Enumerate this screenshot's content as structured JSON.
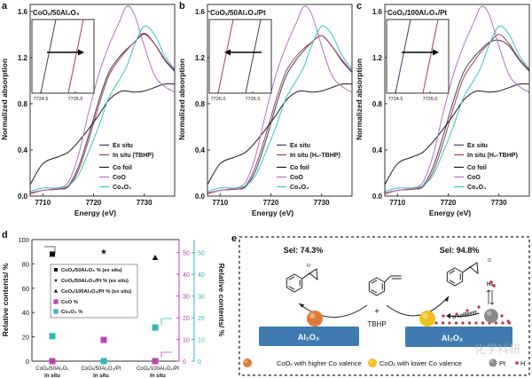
{
  "figure": {
    "panel_labels": [
      "a",
      "b",
      "c",
      "d",
      "e"
    ]
  },
  "chart_data": [
    {
      "panel": "a",
      "type": "line",
      "inset_title": "CoOₓ/50Al₂O₃",
      "xlabel": "Energy (eV)",
      "ylabel": "Normalized absorption",
      "xlim": [
        7707.5,
        7736
      ],
      "ylim": [
        0,
        1.66
      ],
      "xticks": [
        7710,
        7720,
        7730
      ],
      "yticks": [
        0,
        0.4,
        0.8,
        1.2,
        1.6
      ],
      "legend_position": "bottom-right",
      "x": [
        7707.5,
        7710,
        7713,
        7715,
        7717,
        7719,
        7721,
        7723,
        7725,
        7726.5,
        7728,
        7730,
        7732,
        7734,
        7736
      ],
      "series": [
        {
          "name": "Ex situ",
          "color": "#3b4060",
          "values": [
            0.02,
            0.05,
            0.06,
            0.09,
            0.25,
            0.52,
            0.82,
            1.07,
            1.2,
            1.27,
            1.33,
            1.41,
            1.32,
            1.18,
            1.08
          ]
        },
        {
          "name": "In situ (TBHP)",
          "color": "#a8404c",
          "values": [
            0.02,
            0.05,
            0.06,
            0.08,
            0.22,
            0.48,
            0.78,
            1.04,
            1.18,
            1.26,
            1.33,
            1.4,
            1.32,
            1.19,
            1.09
          ]
        },
        {
          "name": "Co foil",
          "color": "#1a1a1a",
          "values": [
            0.1,
            0.28,
            0.34,
            0.38,
            0.47,
            0.58,
            0.7,
            0.83,
            0.9,
            0.91,
            0.9,
            0.91,
            0.94,
            0.97,
            0.97
          ]
        },
        {
          "name": "CoO",
          "color": "#b070c4",
          "values": [
            0.03,
            0.05,
            0.07,
            0.12,
            0.35,
            0.72,
            1.05,
            1.3,
            1.5,
            1.64,
            1.58,
            1.3,
            1.05,
            0.95,
            0.9
          ]
        },
        {
          "name": "Co₃O₄",
          "color": "#3cc4c4",
          "values": [
            0.04,
            0.07,
            0.07,
            0.09,
            0.18,
            0.38,
            0.6,
            0.85,
            1.0,
            1.12,
            1.3,
            1.47,
            1.4,
            1.22,
            1.1
          ]
        }
      ],
      "inset": {
        "xticks": [
          "7724.5",
          "7725.0"
        ],
        "shift": "right",
        "left_line": "Ex situ",
        "right_line": "In situ (TBHP)"
      }
    },
    {
      "panel": "b",
      "type": "line",
      "inset_title": "CoOₓ/50Al₂O₃/Pt",
      "xlabel": "Energy (eV)",
      "ylabel": "Normalized absorption",
      "xlim": [
        7707.5,
        7736
      ],
      "ylim": [
        0,
        1.66
      ],
      "xticks": [
        7710,
        7720,
        7730
      ],
      "yticks": [
        0,
        0.4,
        0.8,
        1.2,
        1.6
      ],
      "legend_position": "bottom-right",
      "x": [
        7707.5,
        7710,
        7713,
        7715,
        7717,
        7719,
        7721,
        7723,
        7725,
        7726.5,
        7728,
        7730,
        7732,
        7734,
        7736
      ],
      "series": [
        {
          "name": "Ex situ",
          "color": "#3b4060",
          "values": [
            0.02,
            0.05,
            0.06,
            0.08,
            0.22,
            0.48,
            0.78,
            1.04,
            1.18,
            1.26,
            1.33,
            1.39,
            1.3,
            1.18,
            1.08
          ]
        },
        {
          "name": "In situ (H₂-TBHP)",
          "color": "#a8404c",
          "values": [
            0.02,
            0.05,
            0.06,
            0.09,
            0.26,
            0.53,
            0.83,
            1.08,
            1.21,
            1.28,
            1.33,
            1.39,
            1.3,
            1.17,
            1.07
          ]
        },
        {
          "name": "Co foil",
          "color": "#1a1a1a",
          "values": [
            0.1,
            0.28,
            0.34,
            0.38,
            0.47,
            0.58,
            0.7,
            0.83,
            0.9,
            0.91,
            0.9,
            0.91,
            0.94,
            0.97,
            0.97
          ]
        },
        {
          "name": "CoO",
          "color": "#b070c4",
          "values": [
            0.03,
            0.05,
            0.07,
            0.12,
            0.35,
            0.72,
            1.05,
            1.3,
            1.5,
            1.64,
            1.58,
            1.3,
            1.05,
            0.95,
            0.9
          ]
        },
        {
          "name": "Co₃O₄",
          "color": "#3cc4c4",
          "values": [
            0.04,
            0.07,
            0.07,
            0.09,
            0.18,
            0.38,
            0.6,
            0.85,
            1.0,
            1.12,
            1.3,
            1.47,
            1.4,
            1.22,
            1.1
          ]
        }
      ],
      "inset": {
        "xticks": [
          "7726.0",
          "7726.5"
        ],
        "shift": "left",
        "left_line": "In situ (H₂-TBHP)",
        "right_line": "Ex situ"
      }
    },
    {
      "panel": "c",
      "type": "line",
      "inset_title": "CoOₓ/100Al₂O₃/Pt",
      "xlabel": "Energy (eV)",
      "ylabel": "Normalized absorption",
      "xlim": [
        7707.5,
        7736
      ],
      "ylim": [
        0,
        1.66
      ],
      "xticks": [
        7710,
        7720,
        7730
      ],
      "yticks": [
        0,
        0.4,
        0.8,
        1.2,
        1.6
      ],
      "legend_position": "bottom-right",
      "x": [
        7707.5,
        7710,
        7713,
        7715,
        7717,
        7719,
        7721,
        7723,
        7725,
        7726.5,
        7728,
        7730,
        7732,
        7734,
        7736
      ],
      "series": [
        {
          "name": "Ex situ",
          "color": "#3b4060",
          "values": [
            0.02,
            0.05,
            0.06,
            0.09,
            0.25,
            0.52,
            0.82,
            1.07,
            1.2,
            1.27,
            1.33,
            1.35,
            1.3,
            1.18,
            1.08
          ]
        },
        {
          "name": "In situ (H₂-TBHP)",
          "color": "#a8404c",
          "values": [
            0.02,
            0.05,
            0.06,
            0.08,
            0.21,
            0.46,
            0.76,
            1.02,
            1.16,
            1.25,
            1.32,
            1.4,
            1.32,
            1.19,
            1.09
          ]
        },
        {
          "name": "Co foil",
          "color": "#1a1a1a",
          "values": [
            0.1,
            0.28,
            0.34,
            0.38,
            0.47,
            0.58,
            0.7,
            0.83,
            0.9,
            0.91,
            0.9,
            0.91,
            0.94,
            0.97,
            0.97
          ]
        },
        {
          "name": "CoO",
          "color": "#b070c4",
          "values": [
            0.03,
            0.05,
            0.07,
            0.12,
            0.35,
            0.72,
            1.05,
            1.3,
            1.5,
            1.64,
            1.58,
            1.3,
            1.05,
            0.95,
            0.9
          ]
        },
        {
          "name": "Co₃O₄",
          "color": "#3cc4c4",
          "values": [
            0.04,
            0.07,
            0.07,
            0.09,
            0.18,
            0.38,
            0.6,
            0.85,
            1.0,
            1.12,
            1.3,
            1.47,
            1.4,
            1.22,
            1.1
          ]
        }
      ],
      "inset": {
        "xticks": [
          "7724.5",
          "7725.0"
        ],
        "shift": "right",
        "left_line": "Ex situ",
        "right_line": "In situ (H₂-TBHP)"
      }
    },
    {
      "panel": "d",
      "type": "scatter",
      "ylabel_left": "Relative contents/ %",
      "ylabel_right": "Relative contents/ %",
      "ylim_left": [
        0,
        100
      ],
      "yticks_left": [
        0,
        20,
        40,
        60,
        80,
        100
      ],
      "ylim_right": [
        0,
        56
      ],
      "yticks_right": [
        0,
        10,
        20,
        30,
        40,
        50
      ],
      "right_axis_colors": {
        "coo": "#c040b0",
        "co3o4": "#30b8b8"
      },
      "legend_position": "center-left",
      "categories": [
        {
          "line1": "CoOₓ/50Al₂O₃",
          "line2": "In situ"
        },
        {
          "line1": "CoOₓ/50Al₂O₃/Pt",
          "line2": "In situ"
        },
        {
          "line1": "CoOₓ/100Al₂O₃/Pt",
          "line2": "In situ"
        }
      ],
      "series": [
        {
          "name": "CoOₓ/50Al₂O₃ % (ex situ)",
          "marker": "square",
          "color": "#111111",
          "axis": "left",
          "values": [
            88,
            null,
            null
          ]
        },
        {
          "name": "CoOₓ/50Al₂O₃/Pt % (ex situ)",
          "marker": "star",
          "color": "#111111",
          "axis": "left",
          "values": [
            null,
            90,
            null
          ]
        },
        {
          "name": "CoOₓ/100Al₂O₃/Pt % (ex situ)",
          "marker": "triangle",
          "color": "#111111",
          "axis": "left",
          "values": [
            null,
            null,
            85
          ]
        },
        {
          "name": "CoO %",
          "marker": "square",
          "color": "#c040b0",
          "axis": "right",
          "values": [
            0,
            9.8,
            0
          ]
        },
        {
          "name": "Co₃O₄ %",
          "marker": "square",
          "color": "#30b8b8",
          "axis": "right",
          "values": [
            11.5,
            0,
            15.5
          ]
        }
      ]
    }
  ],
  "scheme": {
    "left_selectivity": "Sel: 74.3%",
    "right_selectivity": "Sel: 94.8%",
    "epoxide_oxygen": "O",
    "plus": "+",
    "reagent": "TBHP",
    "support_left": "Al₂O₃",
    "support_right": "Al₂O₃",
    "h2": "H₂",
    "spillover": "H spillover",
    "legend": [
      {
        "label": "CoOₓ with higher Co valence",
        "color": "#e07a3a"
      },
      {
        "label": "CoOₓ with lower Co valence",
        "color": "#f0c020"
      },
      {
        "label": "Pt",
        "color": "#8a8a8a"
      },
      {
        "label": "H",
        "color": "#c0304a"
      }
    ],
    "support_color": "#3f7bb0",
    "watermark": "化学科研"
  }
}
